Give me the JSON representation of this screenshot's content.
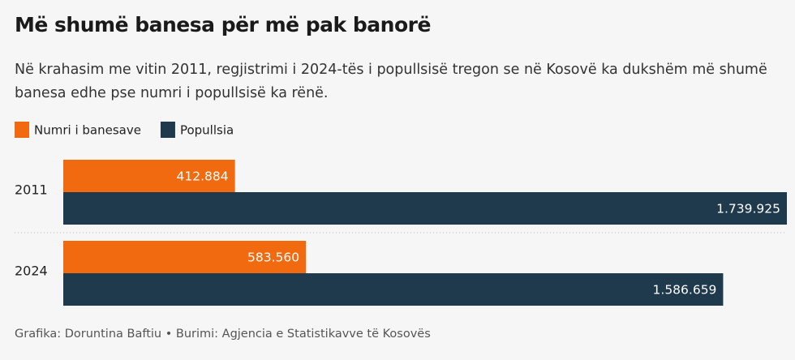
{
  "chart_data": {
    "type": "bar",
    "orientation": "horizontal",
    "title": "Më shumë banesa për më pak banorë",
    "subtitle": "Në krahasim me vitin 2011, regjistrimi i 2024-tës i popullsisë tregon se në Kosovë ka dukshëm më shumë banesa edhe pse numri i popullsisë ka rënë.",
    "source": "Grafika: Doruntina Baftiu • Burimi: Agjencia e Statistikavve të Kosovës",
    "categories": [
      "2011",
      "2024"
    ],
    "series": [
      {
        "name": "Numri i banesave",
        "color": "#f26a10",
        "values": [
          412884,
          583560
        ],
        "value_labels": [
          "412.884",
          "583.560"
        ]
      },
      {
        "name": "Popullsia",
        "color": "#1f3a4c",
        "values": [
          1739925,
          1586659
        ],
        "value_labels": [
          "1.739.925",
          "1.586.659"
        ]
      }
    ],
    "legend": "top-left"
  }
}
